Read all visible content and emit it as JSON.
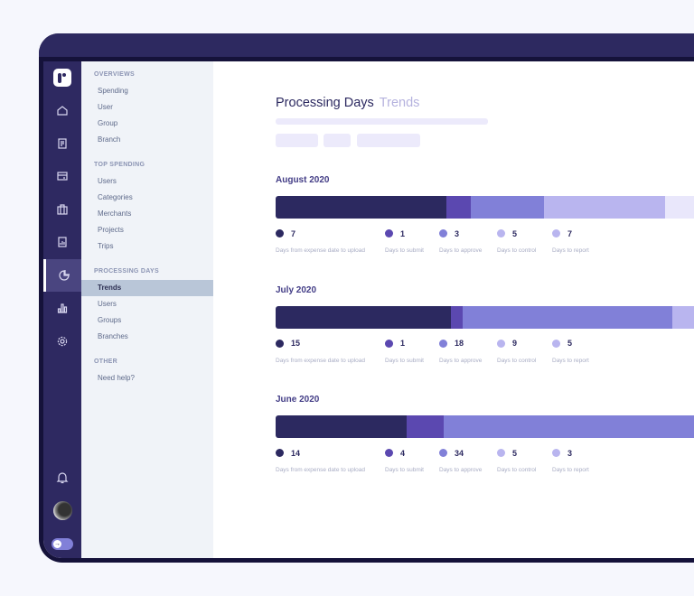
{
  "header": {
    "title": "Processing Days",
    "subtitle": "Trends"
  },
  "sidebar_icons": [
    "home-icon",
    "receipt-icon",
    "card-icon",
    "briefcase-icon",
    "report-icon",
    "pie-chart-icon",
    "bar-chart-icon",
    "gear-icon"
  ],
  "nav": {
    "sections": [
      {
        "title": "OVERVIEWS",
        "items": [
          "Spending",
          "User",
          "Group",
          "Branch"
        ]
      },
      {
        "title": "TOP SPENDING",
        "items": [
          "Users",
          "Categories",
          "Merchants",
          "Projects",
          "Trips"
        ]
      },
      {
        "title": "PROCESSING DAYS",
        "items": [
          "Trends",
          "Users",
          "Groups",
          "Branches"
        ]
      },
      {
        "title": "OTHER",
        "items": [
          "Need help?"
        ]
      }
    ],
    "active": "Trends"
  },
  "colors": {
    "upload": "#2c2960",
    "submit": "#5b48b0",
    "approve": "#8180d8",
    "control": "#b9b5ef",
    "report": "#e9e7fb",
    "report_dot": "#b9b5ef"
  },
  "legend_labels": [
    "Days from expense date to upload",
    "Days to submit",
    "Days to approve",
    "Days to control",
    "Days to report"
  ],
  "chart_data": {
    "type": "bar",
    "orientation": "horizontal-stacked",
    "categories": [
      "August 2020",
      "July 2020",
      "June 2020"
    ],
    "series": [
      {
        "name": "Days from expense date to upload",
        "values": [
          7,
          15,
          14
        ]
      },
      {
        "name": "Days to submit",
        "values": [
          1,
          1,
          4
        ]
      },
      {
        "name": "Days to approve",
        "values": [
          3,
          18,
          34
        ]
      },
      {
        "name": "Days to control",
        "values": [
          5,
          9,
          5
        ]
      },
      {
        "name": "Days to report",
        "values": [
          7,
          5,
          3
        ]
      }
    ]
  }
}
